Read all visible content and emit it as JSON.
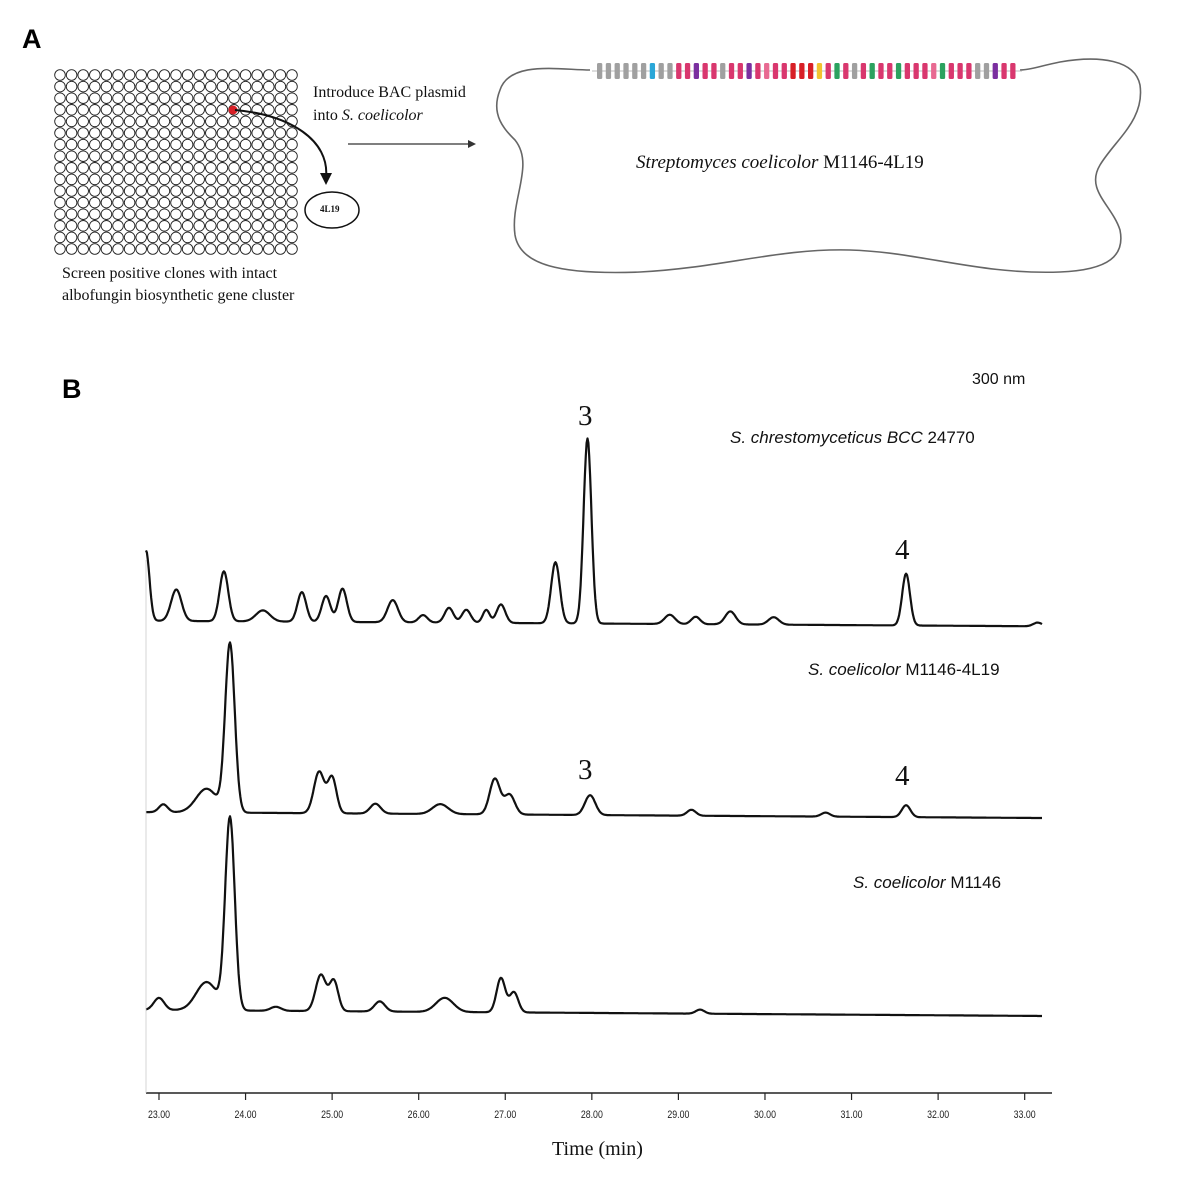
{
  "panel_a": {
    "letter": "A",
    "screen_caption_line1": "Screen positive clones with intact",
    "screen_caption_line2": "albofungin biosynthetic gene cluster",
    "clone_label": "4L19",
    "arrow_label_line1": "Introduce BAC plasmid",
    "arrow_label_line2_prefix": "into ",
    "arrow_label_line2_species": "S. coelicolor",
    "host_species": "Streptomyces coelicolor",
    "host_strain": " M1146-4L19",
    "gene_colors": [
      "#a0a0a0",
      "#d9376e",
      "#2aa7d8",
      "#7b2fa0",
      "#d81f26",
      "#f2c230",
      "#2ca25f",
      "#e86a92"
    ],
    "selected_well_color": "#d81f26"
  },
  "panel_b": {
    "letter": "B",
    "wavelength": "300 nm",
    "peak_labels": [
      "3",
      "4",
      "3",
      "4"
    ],
    "traces": [
      {
        "species": "S. chrestomyceticus BCC",
        "strain": " 24770"
      },
      {
        "species": "S. coelicolor",
        "strain": " M1146-4L19"
      },
      {
        "species": "S. coelicolor",
        "strain": " M1146"
      }
    ],
    "x_ticks": [
      "23.00",
      "24.00",
      "25.00",
      "26.00",
      "27.00",
      "28.00",
      "29.00",
      "30.00",
      "31.00",
      "32.00",
      "33.00"
    ],
    "x_axis_label": "Time (min)"
  },
  "chart_data": {
    "type": "line",
    "xlabel": "Time (min)",
    "ylabel": "",
    "title": "",
    "xlim": [
      22.85,
      33.2
    ],
    "x_ticks": [
      23,
      24,
      25,
      26,
      27,
      28,
      29,
      30,
      31,
      32,
      33
    ],
    "series": [
      {
        "name": "S. chrestomyceticus BCC 24770",
        "baseline": 0.02,
        "peaks": [
          {
            "x": 22.85,
            "h": 0.38,
            "w": 0.04
          },
          {
            "x": 23.2,
            "h": 0.17,
            "w": 0.06
          },
          {
            "x": 23.75,
            "h": 0.27,
            "w": 0.05
          },
          {
            "x": 24.2,
            "h": 0.06,
            "w": 0.08
          },
          {
            "x": 24.65,
            "h": 0.16,
            "w": 0.05
          },
          {
            "x": 24.93,
            "h": 0.14,
            "w": 0.05
          },
          {
            "x": 25.12,
            "h": 0.18,
            "w": 0.05
          },
          {
            "x": 25.7,
            "h": 0.12,
            "w": 0.06
          },
          {
            "x": 26.05,
            "h": 0.04,
            "w": 0.05
          },
          {
            "x": 26.35,
            "h": 0.08,
            "w": 0.05
          },
          {
            "x": 26.55,
            "h": 0.07,
            "w": 0.05
          },
          {
            "x": 26.78,
            "h": 0.07,
            "w": 0.04
          },
          {
            "x": 26.95,
            "h": 0.1,
            "w": 0.05
          },
          {
            "x": 27.58,
            "h": 0.33,
            "w": 0.05
          },
          {
            "x": 27.95,
            "h": 1.0,
            "w": 0.045
          },
          {
            "x": 28.9,
            "h": 0.05,
            "w": 0.06
          },
          {
            "x": 29.2,
            "h": 0.04,
            "w": 0.05
          },
          {
            "x": 29.6,
            "h": 0.07,
            "w": 0.06
          },
          {
            "x": 30.1,
            "h": 0.04,
            "w": 0.06
          },
          {
            "x": 31.63,
            "h": 0.28,
            "w": 0.045
          },
          {
            "x": 33.15,
            "h": 0.02,
            "w": 0.05
          }
        ]
      },
      {
        "name": "S. coelicolor M1146-4L19",
        "baseline": 0.01,
        "peaks": [
          {
            "x": 23.05,
            "h": 0.04,
            "w": 0.05
          },
          {
            "x": 23.55,
            "h": 0.12,
            "w": 0.12
          },
          {
            "x": 23.82,
            "h": 0.85,
            "w": 0.055
          },
          {
            "x": 24.85,
            "h": 0.21,
            "w": 0.06
          },
          {
            "x": 25.0,
            "h": 0.18,
            "w": 0.05
          },
          {
            "x": 25.5,
            "h": 0.05,
            "w": 0.06
          },
          {
            "x": 26.25,
            "h": 0.05,
            "w": 0.09
          },
          {
            "x": 26.88,
            "h": 0.18,
            "w": 0.06
          },
          {
            "x": 27.05,
            "h": 0.1,
            "w": 0.06
          },
          {
            "x": 27.98,
            "h": 0.1,
            "w": 0.06
          },
          {
            "x": 29.15,
            "h": 0.03,
            "w": 0.05
          },
          {
            "x": 30.7,
            "h": 0.02,
            "w": 0.05
          },
          {
            "x": 31.63,
            "h": 0.06,
            "w": 0.05
          }
        ]
      },
      {
        "name": "S. coelicolor M1146",
        "baseline": 0.01,
        "peaks": [
          {
            "x": 23.0,
            "h": 0.06,
            "w": 0.06
          },
          {
            "x": 23.55,
            "h": 0.14,
            "w": 0.12
          },
          {
            "x": 23.82,
            "h": 0.95,
            "w": 0.055
          },
          {
            "x": 24.35,
            "h": 0.02,
            "w": 0.06
          },
          {
            "x": 24.87,
            "h": 0.18,
            "w": 0.06
          },
          {
            "x": 25.02,
            "h": 0.15,
            "w": 0.05
          },
          {
            "x": 25.55,
            "h": 0.05,
            "w": 0.06
          },
          {
            "x": 26.3,
            "h": 0.07,
            "w": 0.1
          },
          {
            "x": 26.95,
            "h": 0.17,
            "w": 0.05
          },
          {
            "x": 27.1,
            "h": 0.1,
            "w": 0.05
          },
          {
            "x": 29.25,
            "h": 0.02,
            "w": 0.05
          }
        ]
      }
    ]
  }
}
